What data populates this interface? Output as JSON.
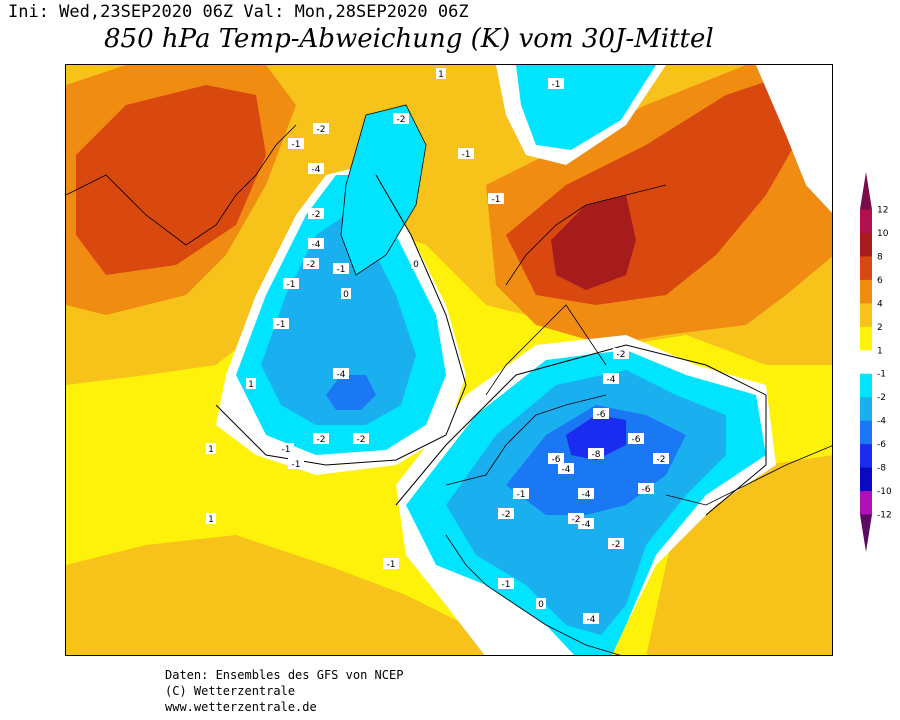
{
  "header": {
    "init_line": "Ini: Wed,23SEP2020 06Z Val: Mon,28SEP2020 06Z",
    "title": "850 hPa Temp-Abweichung (K) vom 30J-Mittel"
  },
  "legend": {
    "colors": [
      "#7a0c4a",
      "#b4104e",
      "#a61c1c",
      "#d9480f",
      "#f08c12",
      "#f7c21a",
      "#fff20a",
      "#ffffff",
      "#00e4ff",
      "#1ab0f0",
      "#1a78f5",
      "#1a2cf0",
      "#0a08c0",
      "#b010b8",
      "#5a0a60"
    ],
    "ticks": [
      "12",
      "10",
      "8",
      "6",
      "4",
      "2",
      "1",
      "-1",
      "-2",
      "-4",
      "-6",
      "-8",
      "-10",
      "-12"
    ]
  },
  "map": {
    "contour_labels": [
      "1",
      "-1",
      "-2",
      "-4",
      "-2",
      "-4",
      "-2",
      "-1",
      "0",
      "1",
      "-1",
      "-1",
      "-4",
      "-2",
      "-1",
      "0",
      "-2",
      "-1",
      "-1",
      "-1",
      "-4",
      "-2",
      "-6",
      "-8",
      "-6",
      "-6",
      "-4",
      "-2",
      "-4",
      "-4",
      "-6",
      "-4",
      "-2",
      "-2",
      "-1",
      "-1",
      "-2",
      "-1",
      "0",
      "-1",
      "-2",
      "1",
      "1",
      "-1",
      "-2"
    ]
  },
  "footer": {
    "line1": "Daten: Ensembles des GFS von NCEP",
    "line2": "(C) Wetterzentrale",
    "line3": "www.wetterzentrale.de"
  }
}
